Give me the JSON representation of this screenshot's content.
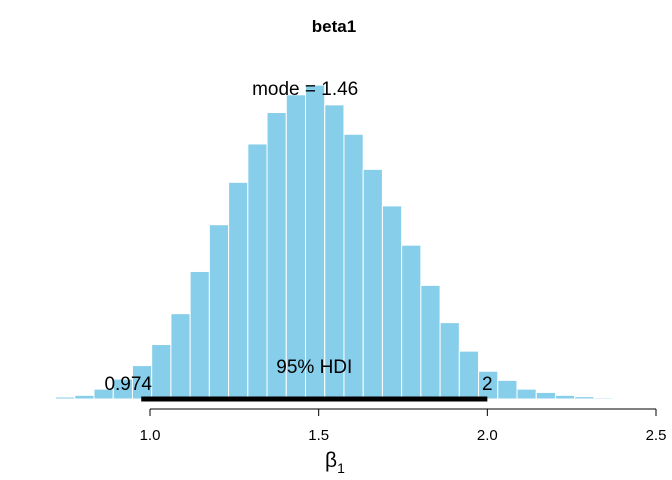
{
  "chart_data": {
    "type": "bar",
    "title": "beta1",
    "xlabel_base": "β",
    "xlabel_sub": "1",
    "xlim": [
      0.7,
      2.5
    ],
    "x_ticks": [
      1.0,
      1.5,
      2.0,
      2.5
    ],
    "x_tick_labels": [
      "1.0",
      "1.5",
      "2.0",
      "2.5"
    ],
    "grid": false,
    "bin_edges": [
      0.72,
      0.777,
      0.834,
      0.891,
      0.948,
      1.005,
      1.062,
      1.119,
      1.176,
      1.233,
      1.29,
      1.347,
      1.404,
      1.461,
      1.518,
      1.575,
      1.632,
      1.689,
      1.746,
      1.803,
      1.86,
      1.917,
      1.974,
      2.031,
      2.088,
      2.145,
      2.202,
      2.259,
      2.316,
      2.373,
      2.43
    ],
    "density": [
      0.011,
      0.02,
      0.054,
      0.109,
      0.183,
      0.298,
      0.467,
      0.698,
      0.954,
      1.186,
      1.396,
      1.568,
      1.665,
      1.718,
      1.61,
      1.449,
      1.257,
      1.057,
      0.842,
      0.622,
      0.418,
      0.262,
      0.152,
      0.102,
      0.054,
      0.036,
      0.02,
      0.013,
      0.007,
      0.003
    ],
    "ylim": [
      0,
      1.85
    ],
    "mode": 1.46,
    "mode_label": "mode = 1.46",
    "hdi": {
      "low": 0.974,
      "high": 2.0,
      "label": "95% HDI",
      "low_label": "0.974",
      "high_label": "2"
    },
    "colors": {
      "bar_fill": "#87ceeb",
      "bar_edge": "#ffffff",
      "hdi_line": "#000000"
    }
  }
}
